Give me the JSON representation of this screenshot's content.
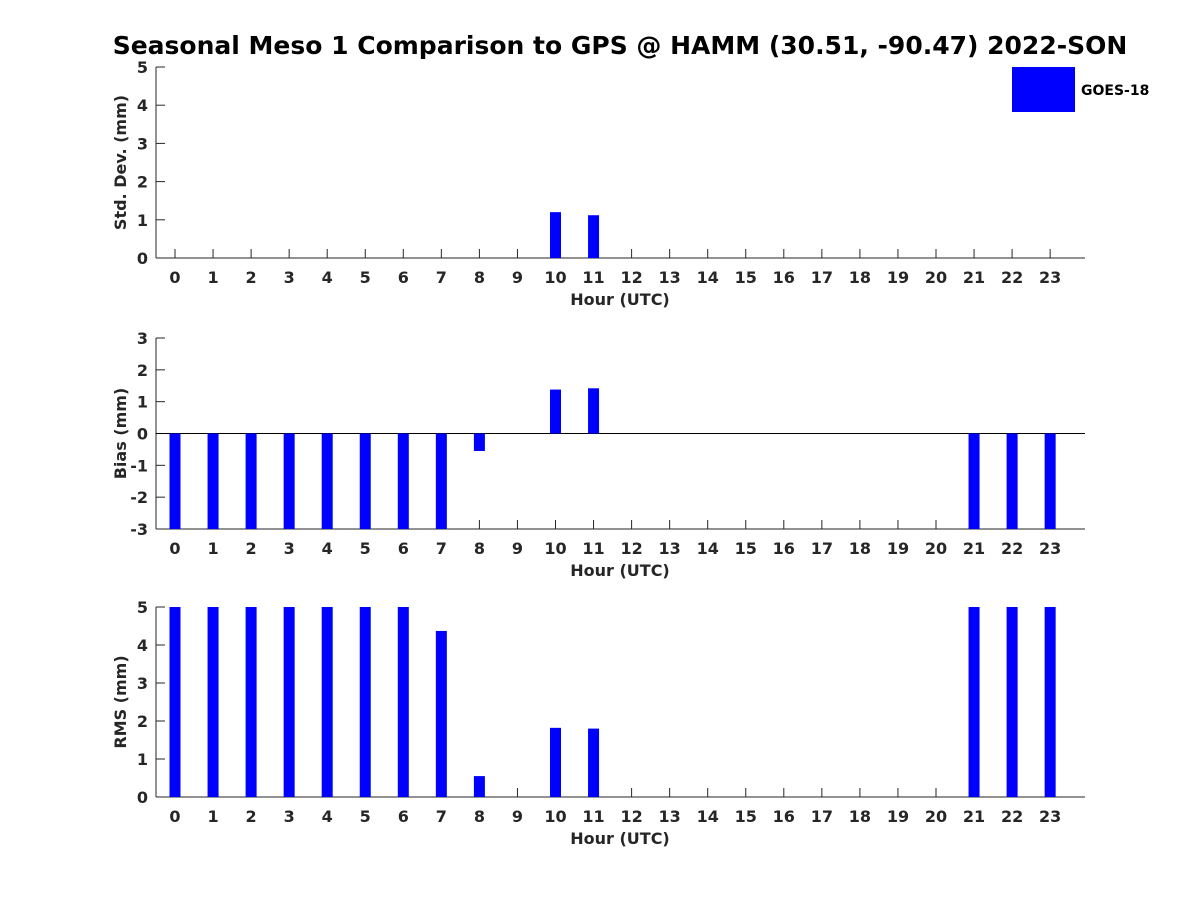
{
  "chart_data": {
    "type": "bar",
    "title": "Seasonal Meso 1 Comparison to GPS @ HAMM (30.51, -90.47) 2022-SON",
    "legend": {
      "label": "GOES-18",
      "color": "#0000ff",
      "placement": "top-right"
    },
    "categories": [
      "0",
      "1",
      "2",
      "3",
      "4",
      "5",
      "6",
      "7",
      "8",
      "9",
      "10",
      "11",
      "12",
      "13",
      "14",
      "15",
      "16",
      "17",
      "18",
      "19",
      "20",
      "21",
      "22",
      "23"
    ],
    "panels": [
      {
        "ylabel": "Std. Dev. (mm)",
        "xlabel": "Hour (UTC)",
        "ylim": [
          0,
          5
        ],
        "yticks": [
          "0",
          "1",
          "2",
          "3",
          "4",
          "5"
        ],
        "series": [
          {
            "name": "GOES-18",
            "color": "#0000ff",
            "values": [
              null,
              null,
              null,
              null,
              null,
              null,
              null,
              null,
              null,
              null,
              1.2,
              1.12,
              null,
              null,
              null,
              null,
              null,
              null,
              null,
              null,
              null,
              null,
              null,
              null
            ]
          }
        ]
      },
      {
        "ylabel": "Bias (mm)",
        "xlabel": "Hour (UTC)",
        "ylim": [
          -3,
          3
        ],
        "yticks": [
          "-3",
          "-2",
          "-1",
          "0",
          "1",
          "2",
          "3"
        ],
        "zero_line": true,
        "series": [
          {
            "name": "GOES-18",
            "color": "#0000ff",
            "values": [
              -3,
              -3,
              -3,
              -3,
              -3,
              -3,
              -3,
              -3,
              -0.55,
              null,
              1.38,
              1.42,
              null,
              null,
              null,
              null,
              null,
              null,
              null,
              null,
              null,
              -3,
              -3,
              -3
            ]
          }
        ]
      },
      {
        "ylabel": "RMS (mm)",
        "xlabel": "Hour (UTC)",
        "ylim": [
          0,
          5
        ],
        "yticks": [
          "0",
          "1",
          "2",
          "3",
          "4",
          "5"
        ],
        "series": [
          {
            "name": "GOES-18",
            "color": "#0000ff",
            "values": [
              5,
              5,
              5,
              5,
              5,
              5,
              5,
              4.37,
              0.55,
              null,
              1.82,
              1.8,
              null,
              null,
              null,
              null,
              null,
              null,
              null,
              null,
              null,
              5,
              5,
              5
            ]
          }
        ]
      }
    ]
  }
}
